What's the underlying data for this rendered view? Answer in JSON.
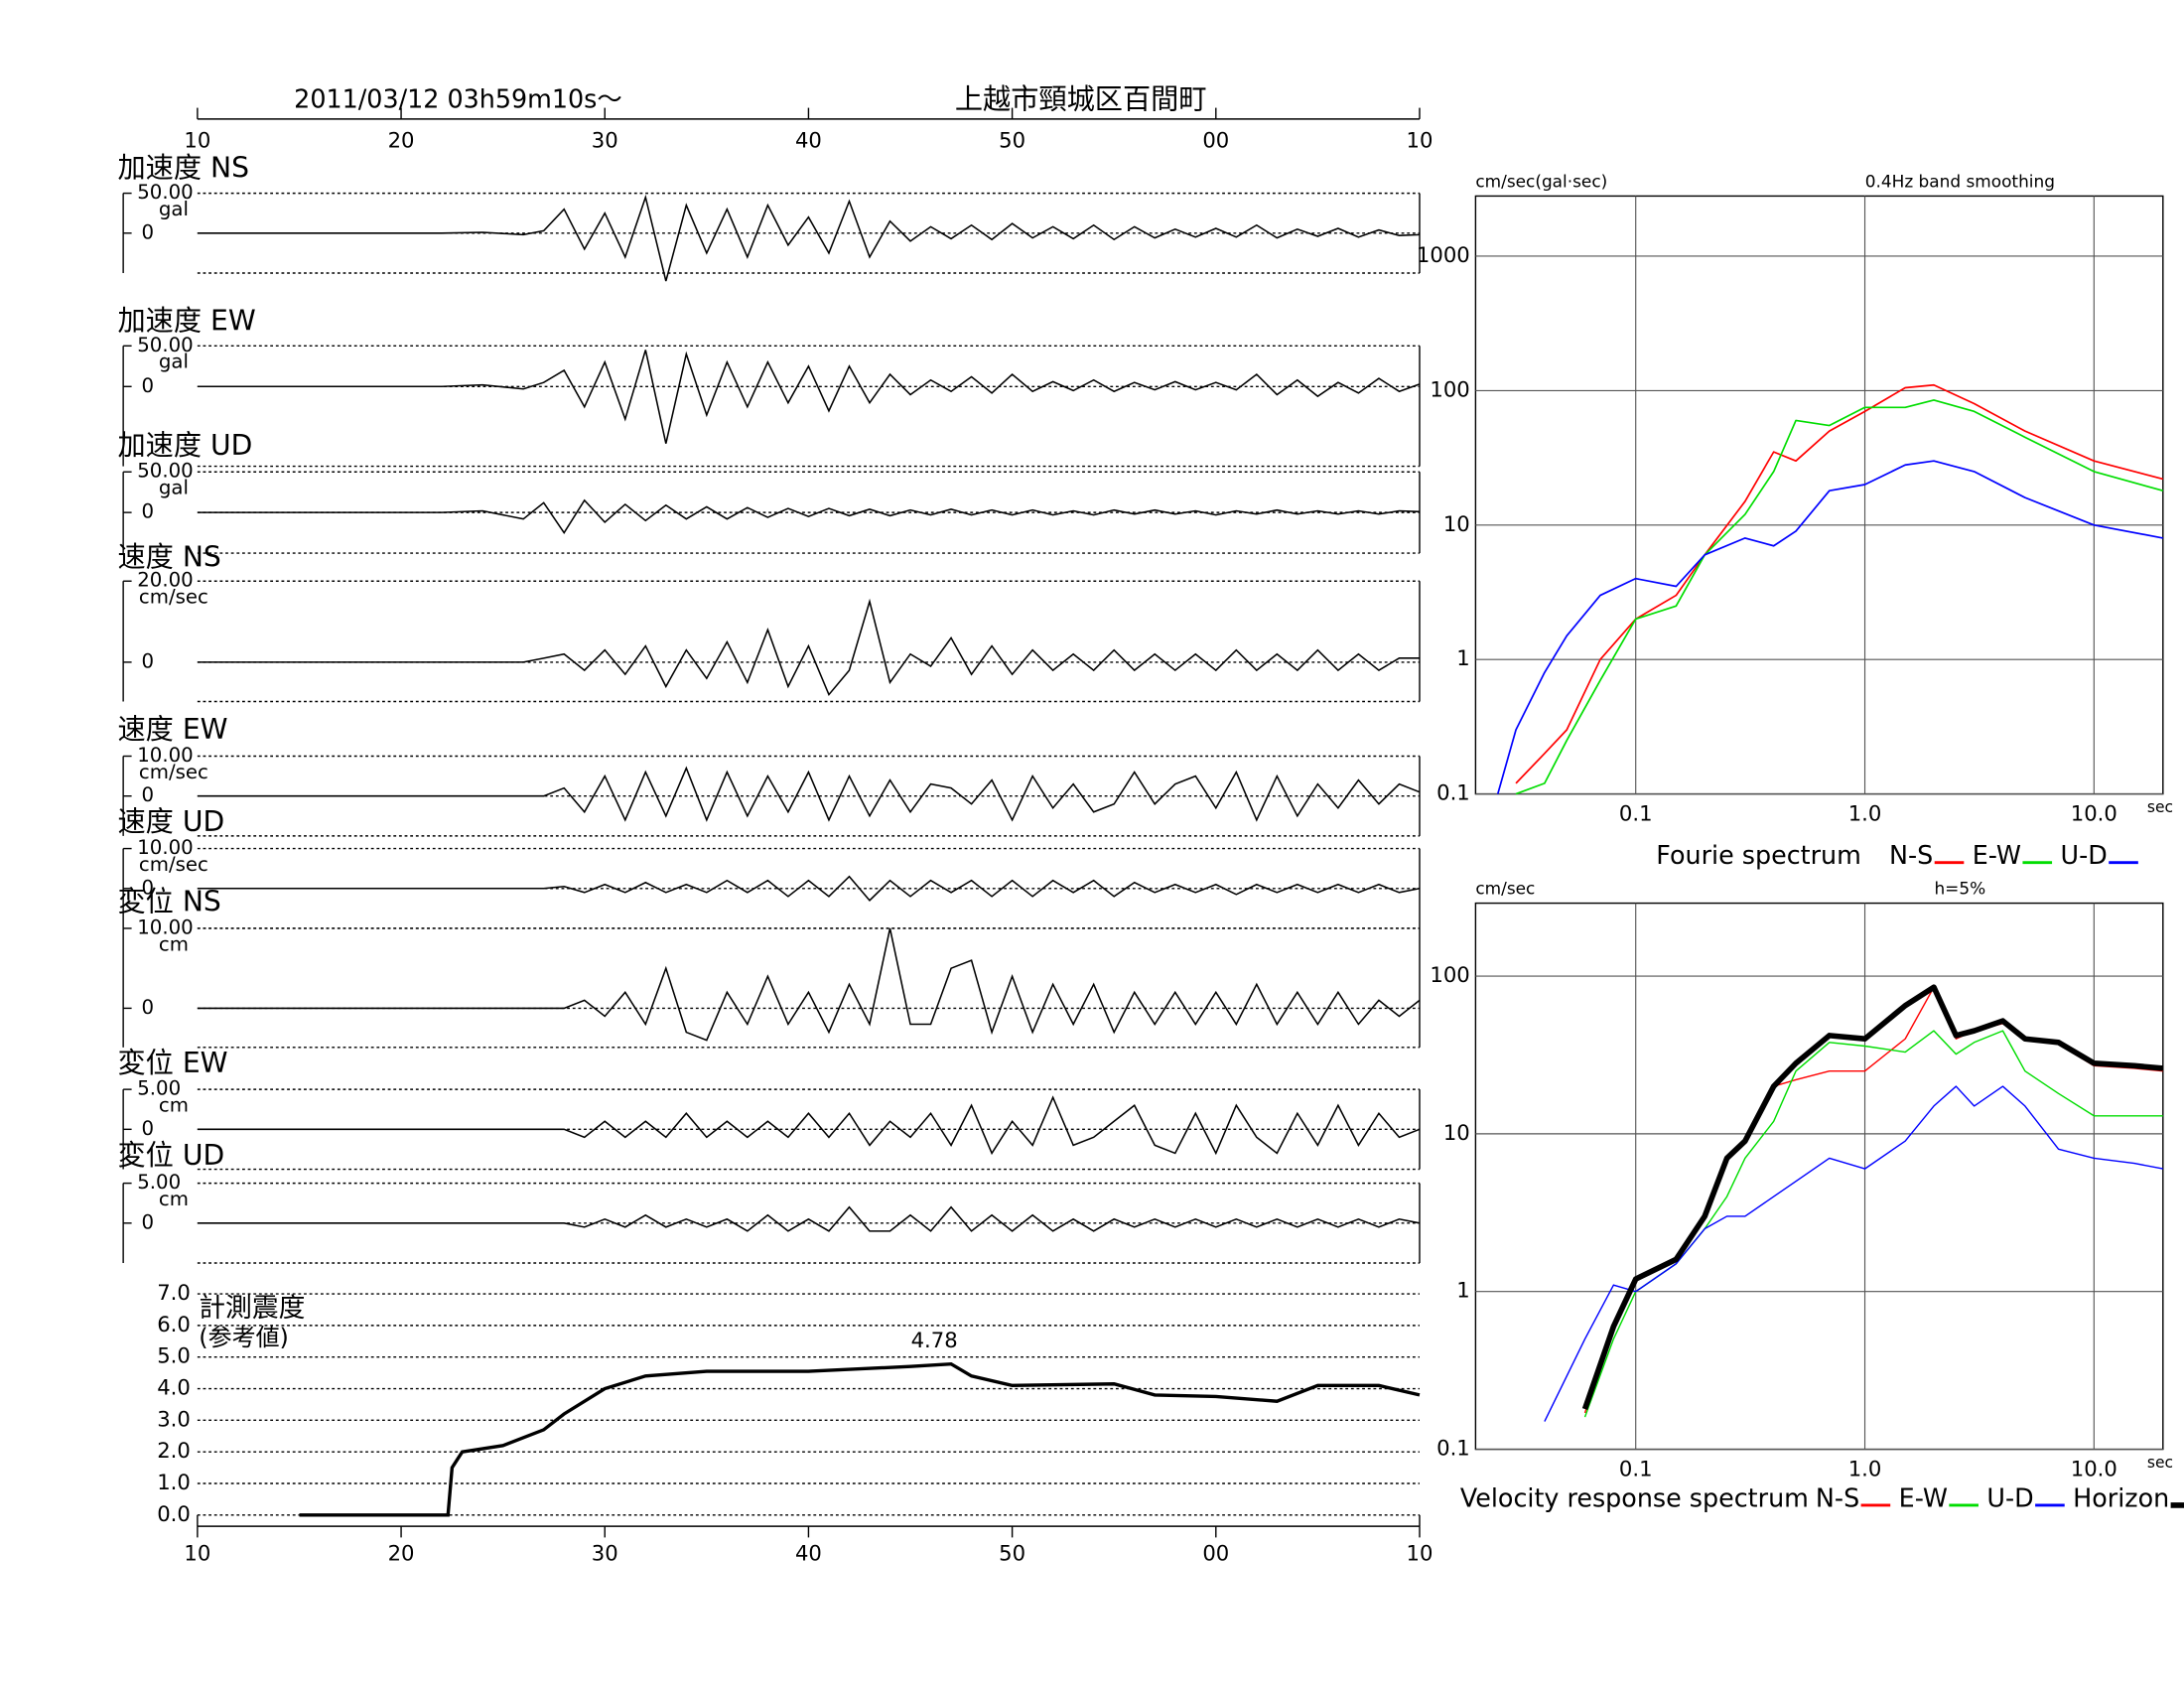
{
  "chart_data": [
    {
      "type": "seismogram",
      "title": "2011/03/12  03h59m10s〜",
      "location": "上越市頸城区百間町",
      "xlim": [
        10,
        70
      ],
      "xticks": [
        10,
        20,
        30,
        40,
        50,
        {
          "value": 60,
          "label": "00"
        },
        {
          "value": 70,
          "label": "10"
        }
      ],
      "x": [
        10,
        22,
        24,
        26,
        27,
        28,
        29,
        30,
        31,
        32,
        33,
        34,
        35,
        36,
        37,
        38,
        39,
        40,
        41,
        42,
        43,
        44,
        45,
        46,
        47,
        48,
        49,
        50,
        51,
        52,
        53,
        54,
        55,
        56,
        57,
        58,
        59,
        60,
        61,
        62,
        63,
        64,
        65,
        66,
        67,
        68,
        69,
        70
      ],
      "series": [
        {
          "name": "加速度 NS",
          "unit": "gal",
          "color": "#000000",
          "ylim": [
            -50,
            50
          ],
          "yticks": [
            {
              "value": 50,
              "label": "50.00"
            },
            0
          ],
          "values": [
            0,
            0,
            1,
            -2,
            3,
            30,
            -20,
            25,
            -30,
            45,
            -60,
            35,
            -25,
            30,
            -30,
            35,
            -15,
            20,
            -25,
            40,
            -30,
            15,
            -10,
            8,
            -7,
            10,
            -8,
            12,
            -6,
            8,
            -7,
            10,
            -8,
            8,
            -6,
            5,
            -5,
            6,
            -5,
            10,
            -6,
            5,
            -4,
            6,
            -5,
            4,
            -3,
            -2
          ]
        },
        {
          "name": "加速度 EW",
          "unit": "gal",
          "color": "#000000",
          "ylim": [
            -98,
            50
          ],
          "yticks": [
            {
              "value": 50,
              "label": "50.00"
            },
            0
          ],
          "values": [
            0,
            0,
            2,
            -3,
            5,
            20,
            -25,
            30,
            -40,
            45,
            -70,
            40,
            -35,
            30,
            -25,
            30,
            -20,
            25,
            -30,
            25,
            -20,
            15,
            -10,
            8,
            -6,
            12,
            -8,
            15,
            -6,
            6,
            -5,
            8,
            -6,
            5,
            -4,
            6,
            -4,
            5,
            -4,
            15,
            -10,
            8,
            -12,
            5,
            -8,
            10,
            -6,
            3
          ]
        },
        {
          "name": "加速度 UD",
          "unit": "gal",
          "color": "#000000",
          "ylim": [
            -50,
            50
          ],
          "yticks": [
            {
              "value": 50,
              "label": "50.00"
            },
            0
          ],
          "values": [
            0,
            0,
            2,
            -8,
            12,
            -25,
            15,
            -12,
            10,
            -10,
            9,
            -8,
            7,
            -8,
            6,
            -6,
            5,
            -5,
            5,
            -4,
            4,
            -4,
            3,
            -3,
            4,
            -3,
            3,
            -3,
            3,
            -3,
            2,
            -3,
            3,
            -2,
            3,
            -2,
            2,
            -3,
            2,
            -2,
            3,
            -2,
            2,
            -2,
            2,
            -2,
            2,
            1
          ]
        },
        {
          "name": "速度 NS",
          "unit": "cm/sec",
          "color": "#000000",
          "ylim": [
            -9.7,
            20
          ],
          "yticks": [
            {
              "value": 20,
              "label": "20.00"
            },
            0
          ],
          "values": [
            0,
            0,
            0,
            0,
            1,
            2,
            -2,
            3,
            -3,
            4,
            -6,
            3,
            -4,
            5,
            -5,
            8,
            -6,
            4,
            -8,
            -2,
            15,
            -5,
            2,
            -1,
            6,
            -3,
            4,
            -3,
            3,
            -2,
            2,
            -2,
            3,
            -2,
            2,
            -2,
            2,
            -2,
            3,
            -2,
            2,
            -2,
            3,
            -2,
            2,
            -2,
            1,
            1
          ]
        },
        {
          "name": "速度 EW",
          "unit": "cm/sec",
          "color": "#000000",
          "ylim": [
            -10,
            10
          ],
          "yticks": [
            {
              "value": 10,
              "label": "10.00"
            },
            0
          ],
          "values": [
            0,
            0,
            0,
            0,
            0,
            2,
            -4,
            5,
            -6,
            6,
            -5,
            7,
            -6,
            6,
            -5,
            5,
            -4,
            6,
            -6,
            5,
            -5,
            4,
            -4,
            3,
            2,
            -2,
            4,
            -6,
            5,
            -3,
            3,
            -4,
            -2,
            6,
            -2,
            3,
            5,
            -3,
            6,
            -6,
            5,
            -5,
            3,
            -3,
            4,
            -2,
            3,
            1
          ]
        },
        {
          "name": "速度 UD",
          "unit": "cm/sec",
          "color": "#000000",
          "ylim": [
            -10,
            10
          ],
          "yticks": [
            {
              "value": 10,
              "label": "10.00"
            },
            0
          ],
          "values": [
            0,
            0,
            0,
            0,
            0,
            0.5,
            -1,
            1,
            -1,
            1.5,
            -1,
            1,
            -1,
            2,
            -1,
            2,
            -2,
            2,
            -2,
            3,
            -3,
            2,
            -2,
            2,
            -1,
            2,
            -2,
            2,
            -2,
            2,
            -1,
            2,
            -2,
            1.5,
            -1,
            1,
            -1,
            1,
            -1.5,
            1,
            -1,
            1,
            -1,
            1,
            -1,
            1,
            -1,
            0
          ]
        },
        {
          "name": "変位 NS",
          "unit": "cm",
          "color": "#000000",
          "ylim": [
            -4.9,
            10
          ],
          "yticks": [
            {
              "value": 10,
              "label": "10.00"
            },
            0
          ],
          "values": [
            0,
            0,
            0,
            0,
            0,
            0,
            1,
            -1,
            2,
            -2,
            5,
            -3,
            -4,
            2,
            -2,
            4,
            -2,
            2,
            -3,
            3,
            -2,
            10,
            -2,
            -2,
            5,
            6,
            -3,
            4,
            -3,
            3,
            -2,
            3,
            -3,
            2,
            -2,
            2,
            -2,
            2,
            -2,
            3,
            -2,
            2,
            -2,
            2,
            -2,
            1,
            -1,
            1
          ]
        },
        {
          "name": "変位 EW",
          "unit": "cm",
          "color": "#000000",
          "ylim": [
            -5,
            5
          ],
          "yticks": [
            {
              "value": 5,
              "label": "5.00"
            },
            0
          ],
          "values": [
            0,
            0,
            0,
            0,
            0,
            0,
            -1,
            1,
            -1,
            1,
            -1,
            2,
            -1,
            1,
            -1,
            1,
            -1,
            2,
            -1,
            2,
            -2,
            1,
            -1,
            2,
            -2,
            3,
            -3,
            1,
            -2,
            4,
            -2,
            -1,
            1,
            3,
            -2,
            -3,
            2,
            -3,
            3,
            -1,
            -3,
            2,
            -2,
            3,
            -2,
            2,
            -1,
            0
          ]
        },
        {
          "name": "変位 UD",
          "unit": "cm",
          "color": "#000000",
          "ylim": [
            -5,
            5
          ],
          "yticks": [
            {
              "value": 5,
              "label": "5.00"
            },
            0
          ],
          "values": [
            0,
            0,
            0,
            0,
            0,
            0,
            -0.5,
            0.5,
            -0.5,
            1,
            -0.5,
            0.5,
            -0.5,
            0.5,
            -1,
            1,
            -1,
            0.5,
            -1,
            2,
            -1,
            -1,
            1,
            -1,
            2,
            -1,
            1,
            -1,
            1,
            -1,
            0.5,
            -1,
            0.5,
            -0.5,
            0.5,
            -0.5,
            0.5,
            -0.5,
            0.5,
            -0.5,
            0.5,
            -0.5,
            0.5,
            -0.5,
            0.5,
            -0.5,
            0.5,
            0
          ]
        }
      ]
    },
    {
      "type": "intensity",
      "title": "計測震度",
      "subtitle": "(参考値)",
      "color": "#000000",
      "grid": true,
      "xlim": [
        10,
        70
      ],
      "xticks": [
        10,
        20,
        30,
        40,
        50,
        {
          "value": 60,
          "label": "00"
        },
        {
          "value": 70,
          "label": "10"
        }
      ],
      "ylim": [
        0,
        7
      ],
      "yticks": [
        {
          "value": 0,
          "label": "0.0"
        },
        {
          "value": 1,
          "label": "1.0"
        },
        {
          "value": 2,
          "label": "2.0"
        },
        {
          "value": 3,
          "label": "3.0"
        },
        {
          "value": 4,
          "label": "4.0"
        },
        {
          "value": 5,
          "label": "5.0"
        },
        {
          "value": 6,
          "label": "6.0"
        },
        {
          "value": 7,
          "label": "7.0"
        }
      ],
      "x": [
        15,
        22.3,
        22.5,
        23,
        25,
        27,
        28,
        30,
        32,
        35,
        40,
        45,
        47,
        48,
        50,
        55,
        57,
        60,
        63,
        65,
        68,
        70
      ],
      "values": [
        0,
        0,
        1.5,
        2,
        2.2,
        2.7,
        3.2,
        4,
        4.4,
        4.55,
        4.55,
        4.7,
        4.78,
        4.4,
        4.1,
        4.15,
        3.8,
        3.75,
        3.6,
        4.1,
        4.1,
        3.8
      ],
      "annotations": [
        {
          "x": 47,
          "value": 4.78
        }
      ]
    },
    {
      "type": "loglog",
      "title": "Fourie spectrum",
      "y_label": "cm/sec(gal·sec)",
      "subtitle": "0.4Hz band smoothing",
      "x_label": "sec",
      "grid": true,
      "log_x": true,
      "log_y": true,
      "xlim": [
        0.02,
        20
      ],
      "xticks": [
        0.1,
        {
          "value": 1,
          "label": "1.0"
        },
        {
          "value": 10,
          "label": "10.0"
        }
      ],
      "ylim": [
        0.1,
        2800
      ],
      "yticks": [
        0.1,
        1,
        10,
        100,
        1000
      ],
      "x": [
        0.025,
        0.03,
        0.04,
        0.05,
        0.07,
        0.1,
        0.15,
        0.2,
        0.3,
        0.4,
        0.5,
        0.7,
        1,
        1.5,
        2,
        3,
        5,
        10,
        20
      ],
      "series": [
        {
          "name": "N-S",
          "color": "#ff0000",
          "values": [
            null,
            0.12,
            0.2,
            0.3,
            1,
            2,
            3,
            6,
            15,
            35,
            30,
            50,
            70,
            105,
            110,
            80,
            50,
            30,
            22
          ]
        },
        {
          "name": "E-W",
          "color": "#00dd00",
          "values": [
            null,
            0.1,
            0.12,
            0.25,
            0.7,
            2,
            2.5,
            6,
            12,
            25,
            60,
            55,
            75,
            75,
            85,
            70,
            45,
            25,
            18
          ]
        },
        {
          "name": "U-D",
          "color": "#0000ff",
          "values": [
            0.1,
            0.3,
            0.8,
            1.5,
            3,
            4,
            3.5,
            6,
            8,
            7,
            9,
            18,
            20,
            28,
            30,
            25,
            16,
            10,
            8
          ]
        }
      ]
    },
    {
      "type": "loglog",
      "title": "Velocity response spectrum",
      "y_label": "cm/sec",
      "subtitle": "h=5%",
      "x_label": "sec",
      "grid": true,
      "log_x": true,
      "log_y": true,
      "xlim": [
        0.02,
        20
      ],
      "xticks": [
        0.1,
        {
          "value": 1,
          "label": "1.0"
        },
        {
          "value": 10,
          "label": "10.0"
        }
      ],
      "ylim": [
        0.1,
        290
      ],
      "yticks": [
        0.1,
        1,
        10,
        100
      ],
      "x": [
        0.04,
        0.06,
        0.08,
        0.1,
        0.15,
        0.2,
        0.25,
        0.3,
        0.4,
        0.5,
        0.7,
        1,
        1.5,
        2,
        2.5,
        3,
        4,
        5,
        7,
        10,
        15,
        20
      ],
      "series": [
        {
          "name": "N-S",
          "color": "#ff0000",
          "line_width": 1,
          "values": [
            null,
            0.17,
            0.6,
            1.2,
            1.6,
            3,
            7,
            9,
            20,
            22,
            25,
            25,
            40,
            85,
            40,
            45,
            50,
            40,
            37,
            27,
            26,
            25
          ]
        },
        {
          "name": "E-W",
          "color": "#00dd00",
          "line_width": 1,
          "values": [
            null,
            0.16,
            0.5,
            1,
            1.5,
            2.5,
            4,
            7,
            12,
            25,
            38,
            36,
            33,
            45,
            32,
            38,
            45,
            25,
            18,
            13,
            13,
            13
          ]
        },
        {
          "name": "U-D",
          "color": "#0000ff",
          "line_width": 1,
          "values": [
            0.15,
            0.5,
            1.1,
            1,
            1.5,
            2.5,
            3,
            3,
            4,
            5,
            7,
            6,
            9,
            15,
            20,
            15,
            20,
            15,
            8,
            7,
            6.5,
            6
          ]
        },
        {
          "name": "Horizon",
          "color": "#000000",
          "line_width": 4,
          "values": [
            null,
            0.18,
            0.6,
            1.2,
            1.6,
            3,
            7,
            9,
            20,
            28,
            42,
            40,
            65,
            85,
            42,
            45,
            52,
            40,
            38,
            28,
            27,
            26
          ]
        }
      ]
    }
  ]
}
